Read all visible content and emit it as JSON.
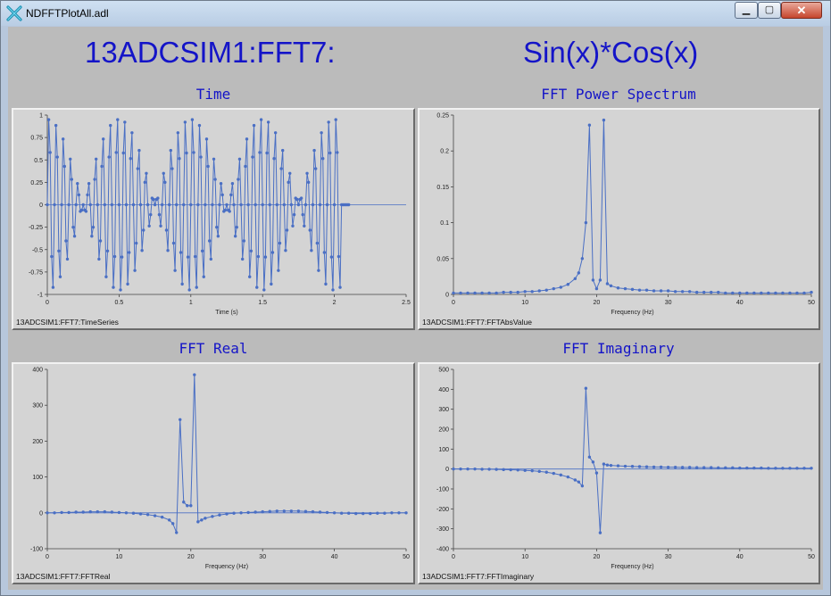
{
  "window": {
    "title": "NDFFTPlotAll.adl"
  },
  "titles": {
    "left": "13ADCSIM1:FFT7:",
    "right": "Sin(x)*Cos(x)"
  },
  "colors": {
    "trace": "#4a6fc4",
    "title": "#1414c8",
    "plot_bg": "#d4d4d4"
  },
  "chart_data": [
    {
      "id": "time",
      "type": "line",
      "title": "Time",
      "xlabel": "Time (s)",
      "ylabel": "",
      "pv": "13ADCSIM1:FFT7:TimeSeries",
      "xlim": [
        0,
        2.5
      ],
      "ylim": [
        -1,
        1
      ],
      "xticks": [
        0,
        0.5,
        1,
        1.5,
        2,
        2.5
      ],
      "xtick_labels": [
        "0",
        "0.5",
        "1",
        "1.5",
        "2",
        "2.5"
      ],
      "yticks": [
        -1,
        -0.75,
        -0.5,
        -0.25,
        0,
        0.25,
        0.5,
        0.75,
        1
      ],
      "ytick_labels": [
        "-1",
        "-0.75",
        "-0.5",
        "-0.25",
        "0",
        "0.25",
        "0.5",
        "0.75",
        "1"
      ],
      "signal": {
        "form": "sin(2*pi*f1*t)*cos(2*pi*f2*t)",
        "f1_hz": 20,
        "f2_hz": 1,
        "dt_s": 0.01,
        "t_start_s": 0,
        "t_end_s": 2.05,
        "flat_after_s": 2.05,
        "flat_until_s": 2.1
      }
    },
    {
      "id": "power",
      "type": "line",
      "title": "FFT Power Spectrum",
      "xlabel": "Frequency (Hz)",
      "ylabel": "",
      "pv": "13ADCSIM1:FFT7:FFTAbsValue",
      "xlim": [
        0,
        50
      ],
      "ylim": [
        0,
        0.25
      ],
      "xticks": [
        0,
        10,
        20,
        30,
        40,
        50
      ],
      "xtick_labels": [
        "0",
        "10",
        "20",
        "30",
        "40",
        "50"
      ],
      "yticks": [
        0,
        0.05,
        0.1,
        0.15,
        0.2,
        0.25
      ],
      "ytick_labels": [
        "0",
        "0.05",
        "0.1",
        "0.15",
        "0.2",
        "0.25"
      ],
      "x": [
        0,
        1,
        2,
        3,
        4,
        5,
        6,
        7,
        8,
        9,
        10,
        11,
        12,
        13,
        14,
        15,
        16,
        17,
        17.5,
        18,
        18.5,
        19,
        19.5,
        20,
        20.5,
        21,
        21.5,
        22,
        23,
        24,
        25,
        26,
        27,
        28,
        29,
        30,
        31,
        32,
        33,
        34,
        35,
        36,
        37,
        38,
        39,
        40,
        41,
        42,
        43,
        44,
        45,
        46,
        47,
        48,
        49,
        50
      ],
      "y": [
        0.002,
        0.002,
        0.002,
        0.002,
        0.002,
        0.002,
        0.002,
        0.003,
        0.003,
        0.003,
        0.004,
        0.004,
        0.005,
        0.006,
        0.008,
        0.01,
        0.014,
        0.022,
        0.03,
        0.05,
        0.1,
        0.236,
        0.02,
        0.008,
        0.02,
        0.243,
        0.015,
        0.012,
        0.009,
        0.008,
        0.007,
        0.006,
        0.006,
        0.005,
        0.005,
        0.005,
        0.004,
        0.004,
        0.004,
        0.003,
        0.003,
        0.003,
        0.003,
        0.002,
        0.002,
        0.002,
        0.002,
        0.002,
        0.002,
        0.002,
        0.002,
        0.002,
        0.002,
        0.002,
        0.002,
        0.003
      ]
    },
    {
      "id": "real",
      "type": "line",
      "title": "FFT Real",
      "xlabel": "Frequency (Hz)",
      "ylabel": "",
      "pv": "13ADCSIM1:FFT7:FFTReal",
      "xlim": [
        0,
        50
      ],
      "ylim": [
        -100,
        400
      ],
      "xticks": [
        0,
        10,
        20,
        30,
        40,
        50
      ],
      "xtick_labels": [
        "0",
        "10",
        "20",
        "30",
        "40",
        "50"
      ],
      "yticks": [
        -100,
        0,
        100,
        200,
        300,
        400
      ],
      "ytick_labels": [
        "-100",
        "0",
        "100",
        "200",
        "300",
        "400"
      ],
      "x": [
        0,
        1,
        2,
        3,
        4,
        5,
        6,
        7,
        8,
        9,
        10,
        11,
        12,
        13,
        14,
        15,
        16,
        17,
        17.5,
        18,
        18.5,
        19,
        19.5,
        20,
        20.5,
        21,
        21.5,
        22,
        23,
        24,
        25,
        26,
        27,
        28,
        29,
        30,
        31,
        32,
        33,
        34,
        35,
        36,
        37,
        38,
        39,
        40,
        41,
        42,
        43,
        44,
        45,
        46,
        47,
        48,
        49,
        50
      ],
      "y": [
        0,
        0,
        1,
        1,
        2,
        2,
        3,
        3,
        3,
        2,
        1,
        0,
        -1,
        -3,
        -5,
        -8,
        -12,
        -20,
        -30,
        -55,
        260,
        30,
        20,
        20,
        385,
        -25,
        -20,
        -15,
        -10,
        -6,
        -3,
        -1,
        0,
        1,
        2,
        3,
        4,
        5,
        5,
        5,
        5,
        4,
        3,
        2,
        1,
        0,
        -1,
        -1,
        -2,
        -2,
        -2,
        -1,
        -1,
        0,
        0,
        0
      ]
    },
    {
      "id": "imag",
      "type": "line",
      "title": "FFT Imaginary",
      "xlabel": "Frequency (Hz)",
      "ylabel": "",
      "pv": "13ADCSIM1:FFT7:FFTImaginary",
      "xlim": [
        0,
        50
      ],
      "ylim": [
        -400,
        500
      ],
      "xticks": [
        0,
        10,
        20,
        30,
        40,
        50
      ],
      "xtick_labels": [
        "0",
        "10",
        "20",
        "30",
        "40",
        "50"
      ],
      "yticks": [
        -400,
        -300,
        -200,
        -100,
        0,
        100,
        200,
        300,
        400,
        500
      ],
      "ytick_labels": [
        "-400",
        "-300",
        "-200",
        "-100",
        "0",
        "100",
        "200",
        "300",
        "400",
        "500"
      ],
      "x": [
        0,
        1,
        2,
        3,
        4,
        5,
        6,
        7,
        8,
        9,
        10,
        11,
        12,
        13,
        14,
        15,
        16,
        17,
        17.5,
        18,
        18.5,
        19,
        19.5,
        20,
        20.5,
        21,
        21.5,
        22,
        23,
        24,
        25,
        26,
        27,
        28,
        29,
        30,
        31,
        32,
        33,
        34,
        35,
        36,
        37,
        38,
        39,
        40,
        41,
        42,
        43,
        44,
        45,
        46,
        47,
        48,
        49,
        50
      ],
      "y": [
        0,
        0,
        0,
        0,
        -1,
        -1,
        -2,
        -3,
        -4,
        -5,
        -7,
        -9,
        -12,
        -16,
        -22,
        -30,
        -40,
        -55,
        -65,
        -85,
        405,
        60,
        35,
        -20,
        -320,
        25,
        20,
        18,
        16,
        14,
        13,
        12,
        11,
        10,
        10,
        9,
        9,
        8,
        8,
        7,
        7,
        7,
        6,
        6,
        6,
        5,
        5,
        5,
        5,
        4,
        4,
        4,
        4,
        4,
        4,
        4
      ]
    }
  ]
}
